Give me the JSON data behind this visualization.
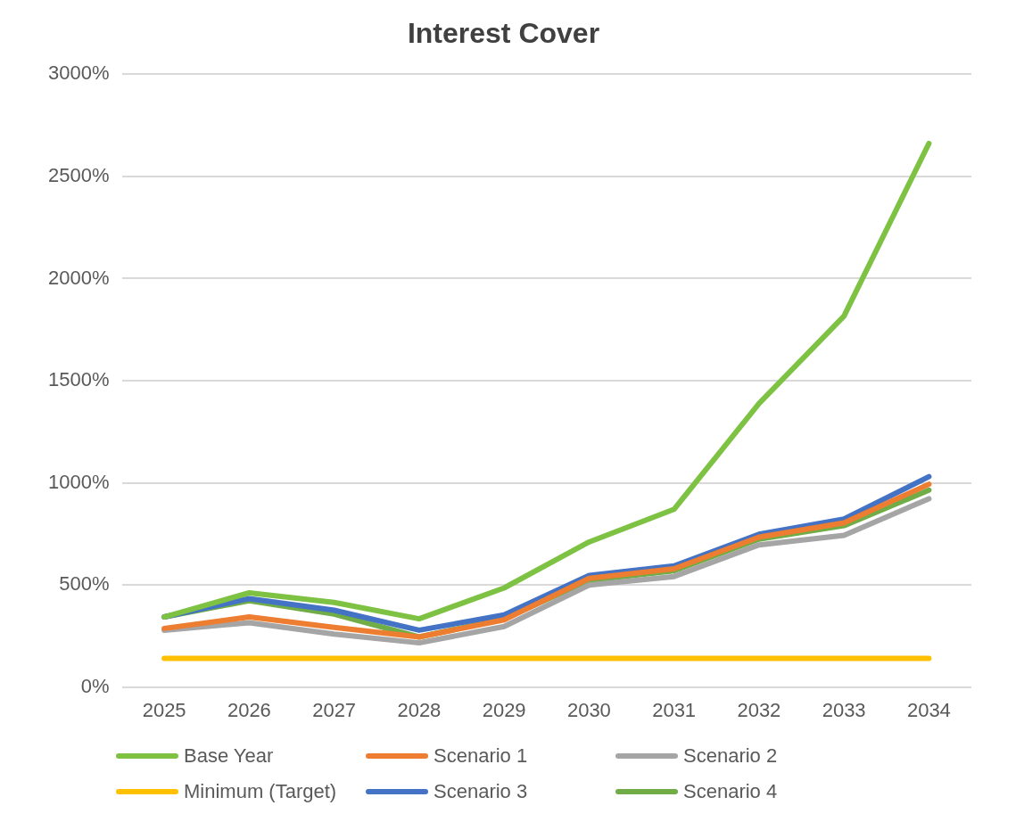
{
  "chart_data": {
    "type": "line",
    "title": "Interest Cover",
    "categories": [
      "2025",
      "2026",
      "2027",
      "2028",
      "2029",
      "2030",
      "2031",
      "2032",
      "2033",
      "2034"
    ],
    "series": [
      {
        "name": "Base Year",
        "color": "#7dc242",
        "values": [
          343,
          461,
          414,
          334,
          485,
          710,
          870,
          1388,
          1816,
          2662
        ]
      },
      {
        "name": "Scenario 1",
        "color": "#ed7d31",
        "values": [
          287,
          343,
          292,
          245,
          329,
          532,
          579,
          734,
          804,
          993
        ]
      },
      {
        "name": "Scenario 2",
        "color": "#a5a5a5",
        "values": [
          278,
          315,
          259,
          216,
          296,
          499,
          541,
          696,
          743,
          922
        ]
      },
      {
        "name": "Minimum (Target)",
        "color": "#ffc000",
        "values": [
          140,
          140,
          140,
          140,
          140,
          140,
          140,
          140,
          140,
          140
        ]
      },
      {
        "name": "Scenario 3",
        "color": "#4472c4",
        "values": [
          343,
          433,
          376,
          278,
          353,
          546,
          593,
          748,
          823,
          1030
        ]
      },
      {
        "name": "Scenario 4",
        "color": "#70ad47",
        "values": [
          343,
          423,
          357,
          245,
          334,
          522,
          569,
          724,
          790,
          964
        ]
      }
    ],
    "ylim": [
      0,
      3000
    ],
    "yticks": [
      {
        "value": 0,
        "label": "0%"
      },
      {
        "value": 500,
        "label": "500%"
      },
      {
        "value": 1000,
        "label": "1000%"
      },
      {
        "value": 1500,
        "label": "1500%"
      },
      {
        "value": 2000,
        "label": "2000%"
      },
      {
        "value": 2500,
        "label": "2500%"
      },
      {
        "value": 3000,
        "label": "3000%"
      }
    ],
    "grid": "y",
    "legend": "bottom",
    "marker": "none",
    "line_style": "solid"
  }
}
